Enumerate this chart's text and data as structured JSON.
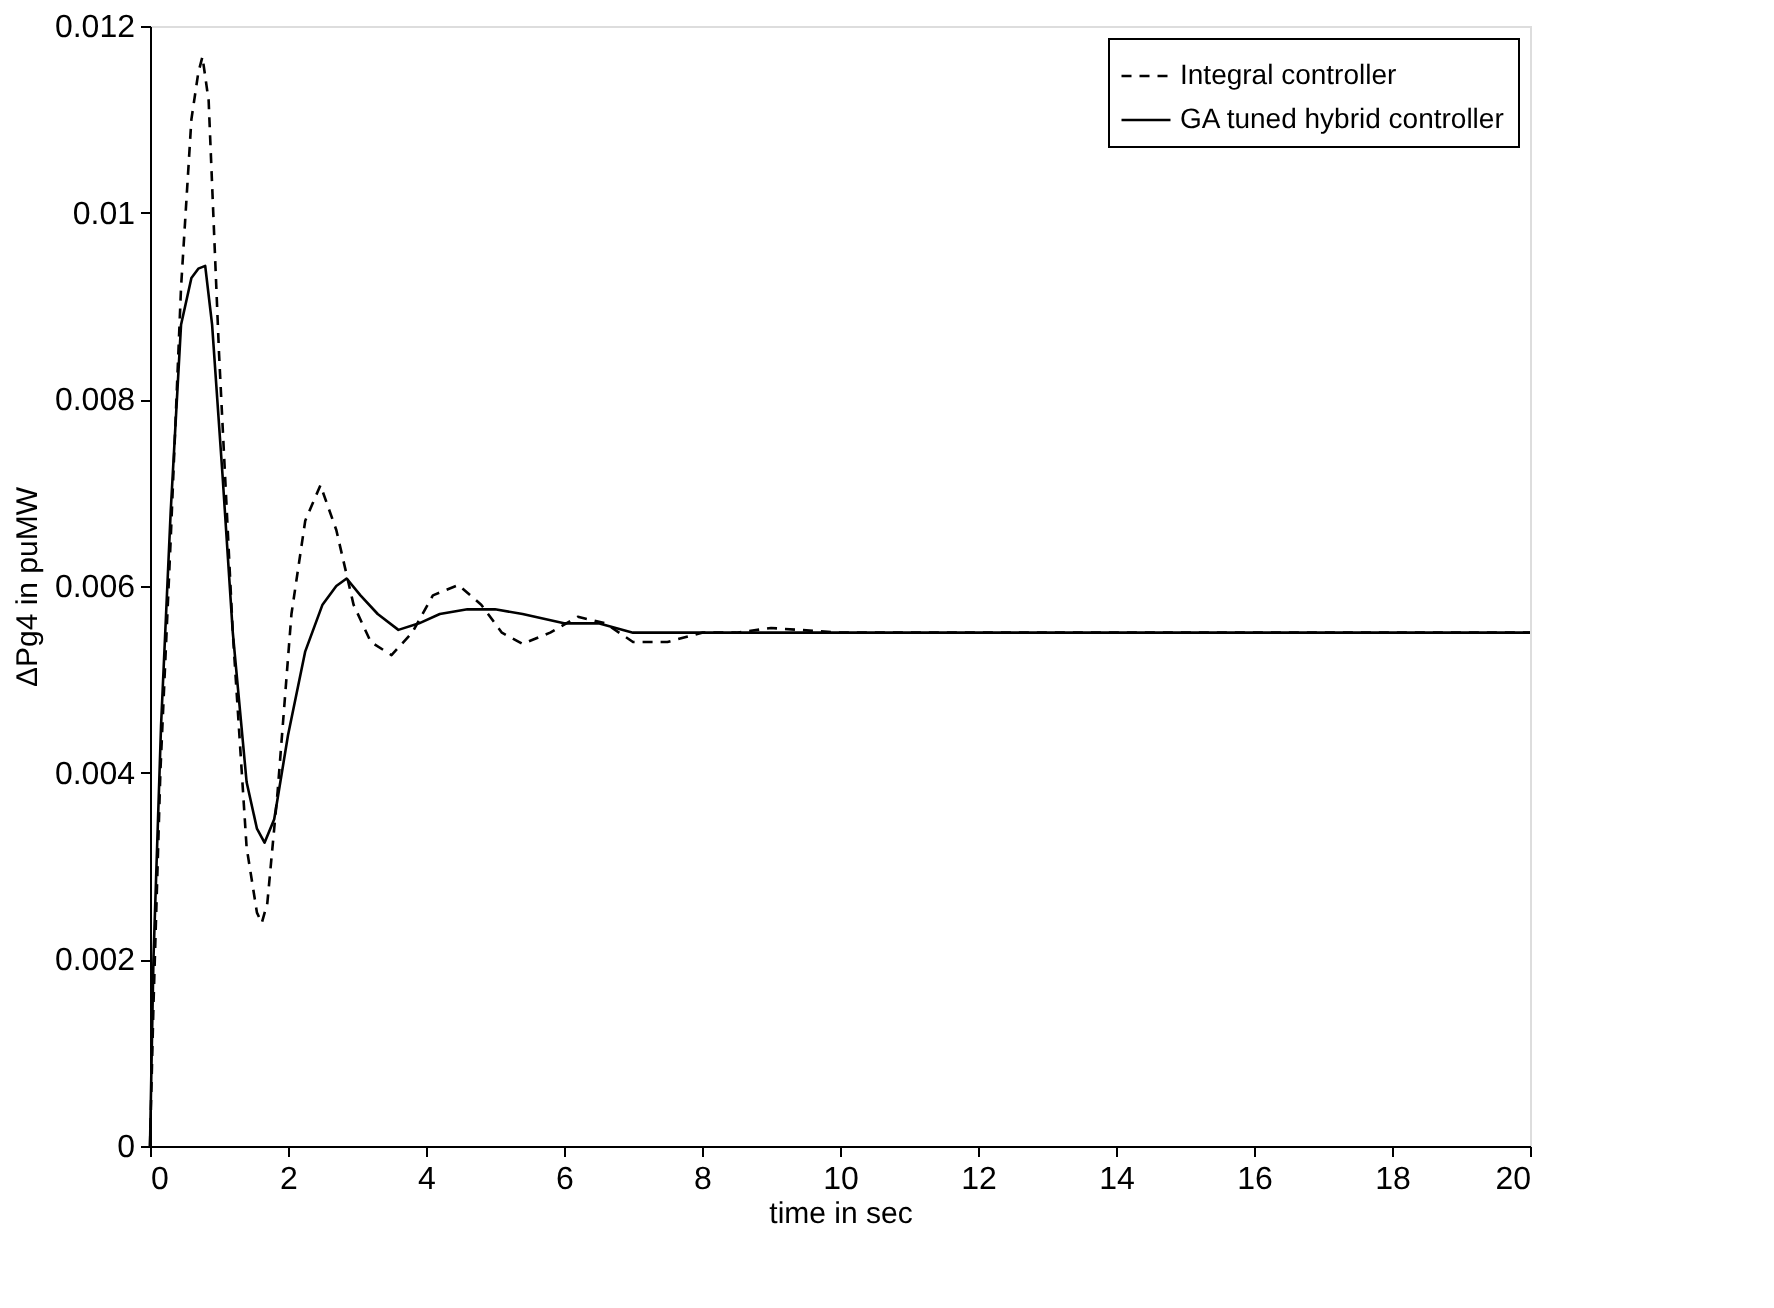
{
  "chart_data": {
    "type": "line",
    "xlabel": "time in sec",
    "ylabel": "ΔPg4 in puMW",
    "xlim": [
      0,
      20
    ],
    "ylim": [
      0,
      0.012
    ],
    "xticks": [
      0,
      2,
      4,
      6,
      8,
      10,
      12,
      14,
      16,
      18,
      20
    ],
    "yticks": [
      0,
      0.002,
      0.004,
      0.006,
      0.008,
      0.01,
      0.012
    ],
    "grid": false,
    "legend": "top right",
    "series": [
      {
        "name": "Integral controller",
        "color": "#000000",
        "line_style": "dashed",
        "x": [
          0,
          0.05,
          0.15,
          0.3,
          0.45,
          0.6,
          0.7,
          0.76,
          0.85,
          1.0,
          1.2,
          1.4,
          1.55,
          1.62,
          1.7,
          1.85,
          2.05,
          2.25,
          2.47,
          2.7,
          2.95,
          3.2,
          3.5,
          3.8,
          4.1,
          4.47,
          4.8,
          5.1,
          5.4,
          5.8,
          6.2,
          6.6,
          7.0,
          7.5,
          8.0,
          8.5,
          9.0,
          10,
          12,
          14,
          16,
          18,
          20
        ],
        "values": [
          0,
          0.0015,
          0.004,
          0.0065,
          0.0092,
          0.011,
          0.0115,
          0.01167,
          0.0112,
          0.0085,
          0.0055,
          0.0032,
          0.0025,
          0.00239,
          0.0026,
          0.0038,
          0.0057,
          0.0067,
          0.00708,
          0.0066,
          0.0058,
          0.0054,
          0.00526,
          0.0055,
          0.0059,
          0.00601,
          0.0058,
          0.0055,
          0.00538,
          0.0055,
          0.00567,
          0.0056,
          0.0054,
          0.0054,
          0.0055,
          0.0055,
          0.00555,
          0.0055,
          0.0055,
          0.0055,
          0.0055,
          0.0055,
          0.0055
        ]
      },
      {
        "name": "GA tuned hybrid controller",
        "color": "#000000",
        "line_style": "solid",
        "x": [
          0,
          0.05,
          0.16,
          0.3,
          0.45,
          0.6,
          0.7,
          0.8,
          0.9,
          1.05,
          1.2,
          1.4,
          1.55,
          1.66,
          1.8,
          2.0,
          2.25,
          2.5,
          2.7,
          2.85,
          3.05,
          3.3,
          3.6,
          3.9,
          4.2,
          4.6,
          5.0,
          5.4,
          6.0,
          6.5,
          7.0,
          8,
          10,
          12,
          14,
          16,
          18,
          20
        ],
        "values": [
          0,
          0.002,
          0.0045,
          0.0068,
          0.0088,
          0.0093,
          0.0094,
          0.00943,
          0.0088,
          0.0072,
          0.0055,
          0.0039,
          0.0034,
          0.00325,
          0.0035,
          0.0044,
          0.0053,
          0.0058,
          0.006,
          0.00608,
          0.0059,
          0.0057,
          0.00553,
          0.0056,
          0.0057,
          0.00575,
          0.00575,
          0.0057,
          0.0056,
          0.0056,
          0.0055,
          0.0055,
          0.0055,
          0.0055,
          0.0055,
          0.0055,
          0.0055,
          0.0055
        ]
      }
    ]
  }
}
